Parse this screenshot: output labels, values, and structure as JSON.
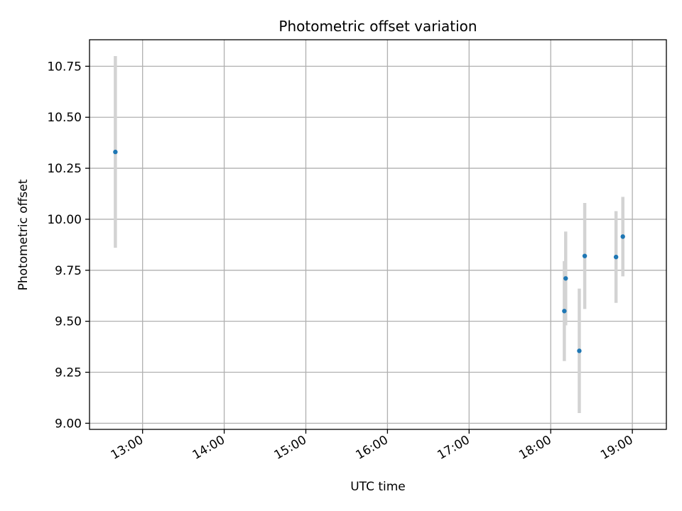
{
  "chart_data": {
    "type": "scatter",
    "title": "Photometric offset variation",
    "xlabel": "UTC time",
    "ylabel": "Photometric offset",
    "x_type": "time",
    "xlim": [
      "12:21",
      "19:25"
    ],
    "ylim": [
      8.97,
      10.88
    ],
    "x_ticks": [
      "13:00",
      "14:00",
      "15:00",
      "16:00",
      "17:00",
      "18:00",
      "19:00"
    ],
    "y_ticks": [
      9.0,
      9.25,
      9.5,
      9.75,
      10.0,
      10.25,
      10.5,
      10.75
    ],
    "y_tick_labels": [
      "9.00",
      "9.25",
      "9.50",
      "9.75",
      "10.00",
      "10.25",
      "10.50",
      "10.75"
    ],
    "grid": true,
    "marker_color": "#1f77b4",
    "errorbar_color": "#d3d3d3",
    "points": [
      {
        "time": "12:40",
        "y": 10.33,
        "yerr": 0.47
      },
      {
        "time": "18:10",
        "y": 9.55,
        "yerr": 0.245
      },
      {
        "time": "18:11",
        "y": 9.71,
        "yerr": 0.23
      },
      {
        "time": "18:21",
        "y": 9.355,
        "yerr": 0.305
      },
      {
        "time": "18:25",
        "y": 9.82,
        "yerr": 0.26
      },
      {
        "time": "18:48",
        "y": 9.815,
        "yerr": 0.225
      },
      {
        "time": "18:53",
        "y": 9.915,
        "yerr": 0.195
      }
    ]
  }
}
